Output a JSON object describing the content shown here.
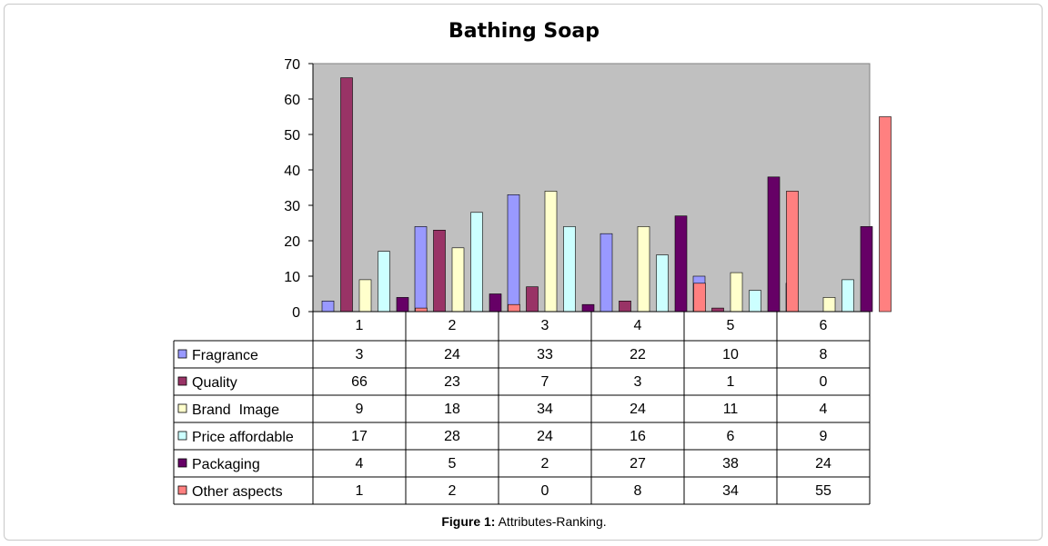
{
  "chart_data": {
    "type": "bar",
    "title": "Bathing Soap",
    "categories": [
      "1",
      "2",
      "3",
      "4",
      "5",
      "6"
    ],
    "ylim": [
      0,
      70
    ],
    "yticks": [
      0,
      10,
      20,
      30,
      40,
      50,
      60,
      70
    ],
    "grid": false,
    "legend_placement": "data-table-left",
    "series": [
      {
        "name": "Fragrance",
        "color": "#9999ff",
        "values": [
          3,
          24,
          33,
          22,
          10,
          8
        ]
      },
      {
        "name": "Quality",
        "color": "#993366",
        "values": [
          66,
          23,
          7,
          3,
          1,
          0
        ]
      },
      {
        "name": "Brand  Image",
        "color": "#ffffcc",
        "values": [
          9,
          18,
          34,
          24,
          11,
          4
        ]
      },
      {
        "name": "Price affordable",
        "color": "#ccffff",
        "values": [
          17,
          28,
          24,
          16,
          6,
          9
        ]
      },
      {
        "name": "Packaging",
        "color": "#660066",
        "values": [
          4,
          5,
          2,
          27,
          38,
          24
        ]
      },
      {
        "name": "Other aspects",
        "color": "#ff8080",
        "values": [
          1,
          2,
          0,
          8,
          34,
          55
        ]
      }
    ],
    "plot_background": "#c0c0c0"
  },
  "caption": {
    "label": "Figure 1:",
    "text": "Attributes-Ranking."
  }
}
